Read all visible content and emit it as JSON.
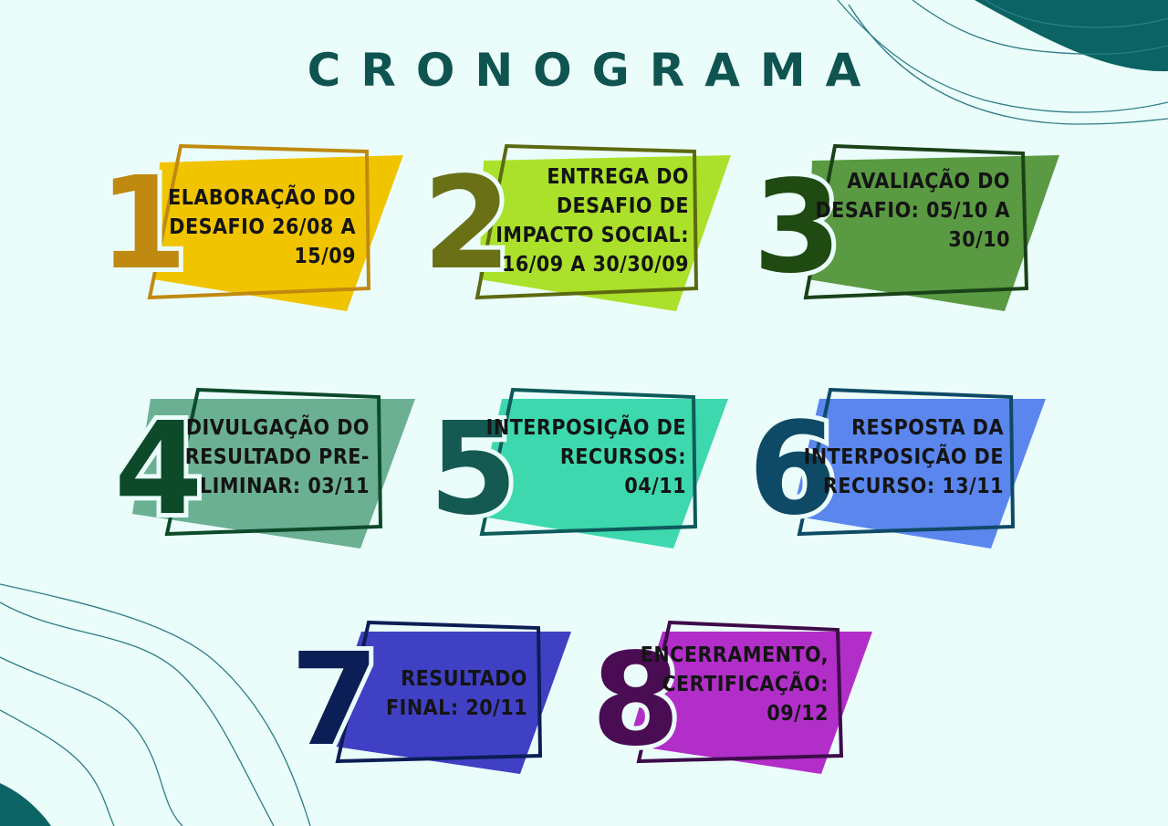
{
  "title": "CRONOGRAMA",
  "colors": {
    "background": "#ebfdfb",
    "title": "#0f5450",
    "decoration": "#0b6363"
  },
  "steps": [
    {
      "number": "1",
      "lines": [
        "ELABORAÇÃO DO",
        "DESAFIO 26/08 A",
        "15/09"
      ],
      "fill": "#f1c400",
      "frame": "#c08a10",
      "number_color": "#c08a10"
    },
    {
      "number": "2",
      "lines": [
        "ENTREGA DO",
        "DESAFIO DE",
        "IMPACTO SOCIAL:",
        "16/09 A 30/30/09"
      ],
      "fill": "#abe12a",
      "frame": "#5c6a10",
      "number_color": "#6a7015"
    },
    {
      "number": "3",
      "lines": [
        "AVALIAÇÃO DO",
        "DESAFIO: 05/10 A",
        "30/10"
      ],
      "fill": "#5a9a42",
      "frame": "#1a4218",
      "number_color": "#1f4a12"
    },
    {
      "number": "4",
      "lines": [
        "DIVULGAÇÃO DO",
        "RESULTADO PRE-",
        "LIMINAR: 03/11"
      ],
      "fill": "#6cb094",
      "frame": "#0c4a2a",
      "number_color": "#0c4a2a"
    },
    {
      "number": "5",
      "lines": [
        "INTERPOSIÇÃO DE",
        "RECURSOS:",
        "04/11"
      ],
      "fill": "#3ed8ae",
      "frame": "#0e5a5a",
      "number_color": "#145a52"
    },
    {
      "number": "6",
      "lines": [
        "RESPOSTA DA",
        "INTERPOSIÇÃO DE",
        "RECURSO: 13/11"
      ],
      "fill": "#5a86ee",
      "frame": "#0e4a66",
      "number_color": "#0e4a66"
    },
    {
      "number": "7",
      "lines": [
        "RESULTADO",
        "FINAL: 20/11"
      ],
      "fill": "#4040c4",
      "frame": "#0b1e55",
      "number_color": "#0b1e55"
    },
    {
      "number": "8",
      "lines": [
        "ENCERRAMENTO,",
        "CERTIFICAÇÃO:",
        "09/12"
      ],
      "fill": "#b22ec9",
      "frame": "#3e0c4a",
      "number_color": "#4a0c52"
    }
  ]
}
